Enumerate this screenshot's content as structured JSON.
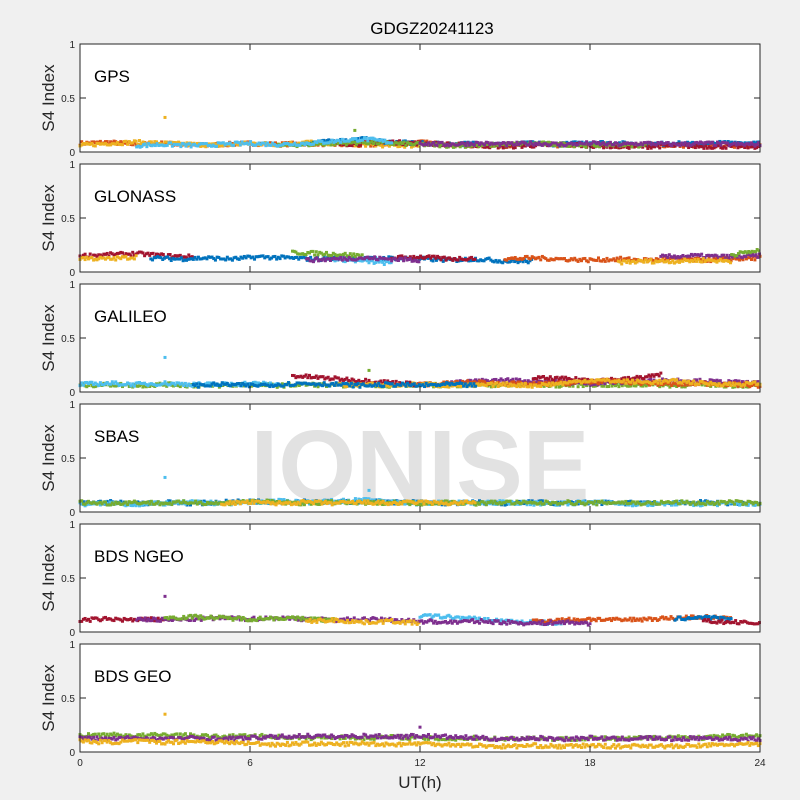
{
  "chart_data": {
    "type": "scatter",
    "title": "GDGZ20241123",
    "xlabel": "UT(h)",
    "ylabel": "S4 Index",
    "xlim": [
      0,
      24
    ],
    "ylim": [
      0,
      1
    ],
    "xticks": [
      "0",
      "6",
      "12",
      "18",
      "24"
    ],
    "yticks": [
      "0",
      "0.5",
      "1"
    ],
    "watermark": "IONISE",
    "panels": [
      {
        "label": "GPS",
        "series": [
          {
            "color": "#D95319",
            "t0": 0,
            "t1": 24,
            "y": [
              0.08,
              0.09,
              0.07,
              0.08,
              0.06,
              0.07,
              0.08,
              0.07,
              0.08,
              0.07,
              0.06,
              0.08,
              0.09,
              0.07,
              0.06,
              0.06,
              0.07,
              0.06,
              0.07,
              0.06,
              0.07,
              0.06,
              0.06,
              0.06,
              0.06
            ]
          },
          {
            "color": "#EDB120",
            "t0": 0,
            "t1": 12,
            "y": [
              0.06,
              0.08,
              0.09,
              0.08,
              0.07,
              0.06,
              0.08,
              0.07,
              0.09,
              0.08,
              0.07,
              0.06,
              0.06
            ]
          },
          {
            "color": "#0072BD",
            "t0": 8,
            "t1": 24,
            "y": [
              0.08,
              0.1,
              0.12,
              0.09,
              0.08,
              0.07,
              0.08,
              0.07,
              0.08,
              0.07,
              0.09,
              0.08,
              0.07,
              0.08,
              0.07,
              0.09,
              0.08
            ]
          },
          {
            "color": "#A2142F",
            "t0": 9,
            "t1": 24,
            "y": [
              0.07,
              0.08,
              0.09,
              0.08,
              0.07,
              0.06,
              0.05,
              0.06,
              0.07,
              0.06,
              0.05,
              0.05,
              0.06,
              0.05,
              0.05,
              0.05
            ]
          },
          {
            "color": "#77AC30",
            "t0": 7,
            "t1": 20,
            "y": [
              0.06,
              0.07,
              0.08,
              0.09,
              0.08,
              0.07,
              0.06,
              0.06,
              0.07,
              0.08,
              0.07,
              0.06,
              0.07,
              0.06
            ]
          },
          {
            "color": "#4DBEEE",
            "t0": 2,
            "t1": 11,
            "y": [
              0.06,
              0.07,
              0.06,
              0.07,
              0.08,
              0.07,
              0.08,
              0.1,
              0.12,
              0.09
            ]
          },
          {
            "color": "#7E2F8E",
            "t0": 12,
            "t1": 24,
            "y": [
              0.08,
              0.07,
              0.08,
              0.07,
              0.08,
              0.07,
              0.08,
              0.07,
              0.08,
              0.07,
              0.08,
              0.07,
              0.07
            ]
          }
        ],
        "outliers": [
          {
            "x": 3.0,
            "y": 0.32,
            "color": "#EDB120"
          },
          {
            "x": 9.7,
            "y": 0.2,
            "color": "#77AC30"
          }
        ]
      },
      {
        "label": "GLONASS",
        "series": [
          {
            "color": "#A2142F",
            "t0": 0,
            "t1": 4,
            "y": [
              0.15,
              0.16,
              0.17,
              0.15,
              0.14
            ]
          },
          {
            "color": "#EDB120",
            "t0": 0,
            "t1": 2,
            "y": [
              0.13,
              0.12,
              0.14
            ]
          },
          {
            "color": "#0072BD",
            "t0": 2.5,
            "t1": 16,
            "y": [
              0.13,
              0.12,
              0.13,
              0.12,
              0.14,
              0.13,
              0.12,
              0.13,
              0.12,
              0.13,
              0.12,
              0.11,
              0.12,
              0.1,
              0.1
            ]
          },
          {
            "color": "#77AC30",
            "t0": 7.5,
            "t1": 10,
            "y": [
              0.18,
              0.17,
              0.15
            ]
          },
          {
            "color": "#4DBEEE",
            "t0": 9,
            "t1": 11,
            "y": [
              0.12,
              0.1,
              0.08
            ]
          },
          {
            "color": "#A2142F",
            "t0": 11,
            "t1": 14,
            "y": [
              0.13,
              0.14,
              0.12,
              0.13
            ]
          },
          {
            "color": "#7E2F8E",
            "t0": 8,
            "t1": 12,
            "y": [
              0.11,
              0.12,
              0.13,
              0.12,
              0.11
            ]
          },
          {
            "color": "#D95319",
            "t0": 15,
            "t1": 24,
            "y": [
              0.12,
              0.13,
              0.12,
              0.11,
              0.12,
              0.11,
              0.12,
              0.11,
              0.12,
              0.13
            ]
          },
          {
            "color": "#7E2F8E",
            "t0": 20.5,
            "t1": 24,
            "y": [
              0.14,
              0.15,
              0.14,
              0.15
            ]
          },
          {
            "color": "#EDB120",
            "t0": 19,
            "t1": 23,
            "y": [
              0.09,
              0.1,
              0.1,
              0.11,
              0.1
            ]
          },
          {
            "color": "#77AC30",
            "t0": 23,
            "t1": 24,
            "y": [
              0.16,
              0.2
            ]
          }
        ],
        "outliers": []
      },
      {
        "label": "GALILEO",
        "series": [
          {
            "color": "#77AC30",
            "t0": 0,
            "t1": 24,
            "y": [
              0.06,
              0.07,
              0.06,
              0.07,
              0.06,
              0.06,
              0.07,
              0.06,
              0.07,
              0.06,
              0.07,
              0.06,
              0.07,
              0.06,
              0.07,
              0.06,
              0.07,
              0.06,
              0.07,
              0.06,
              0.07,
              0.06,
              0.07,
              0.06,
              0.06
            ]
          },
          {
            "color": "#4DBEEE",
            "t0": 0,
            "t1": 7,
            "y": [
              0.07,
              0.08,
              0.07,
              0.08,
              0.07,
              0.07,
              0.08,
              0.07
            ]
          },
          {
            "color": "#A2142F",
            "t0": 7.5,
            "t1": 12,
            "y": [
              0.15,
              0.13,
              0.11,
              0.09,
              0.07
            ]
          },
          {
            "color": "#7E2F8E",
            "t0": 13,
            "t1": 24,
            "y": [
              0.08,
              0.1,
              0.11,
              0.1,
              0.09,
              0.08,
              0.09,
              0.1,
              0.11,
              0.1,
              0.09,
              0.08
            ]
          },
          {
            "color": "#A2142F",
            "t0": 16,
            "t1": 20.5,
            "y": [
              0.13,
              0.12,
              0.11,
              0.12,
              0.16
            ]
          },
          {
            "color": "#D95319",
            "t0": 12,
            "t1": 24,
            "y": [
              0.07,
              0.08,
              0.09,
              0.08,
              0.07,
              0.08,
              0.09,
              0.1,
              0.08,
              0.07,
              0.08,
              0.07,
              0.06
            ]
          },
          {
            "color": "#EDB120",
            "t0": 9,
            "t1": 24,
            "y": [
              0.06,
              0.07,
              0.06,
              0.07,
              0.06,
              0.06,
              0.07,
              0.06,
              0.08,
              0.11,
              0.1,
              0.09,
              0.1,
              0.08,
              0.07,
              0.08
            ]
          },
          {
            "color": "#0072BD",
            "t0": 4,
            "t1": 14,
            "y": [
              0.06,
              0.07,
              0.06,
              0.07,
              0.08,
              0.07,
              0.06,
              0.07,
              0.06,
              0.07,
              0.06
            ]
          }
        ],
        "outliers": [
          {
            "x": 3.0,
            "y": 0.32,
            "color": "#4DBEEE"
          },
          {
            "x": 10.2,
            "y": 0.2,
            "color": "#77AC30"
          }
        ]
      },
      {
        "label": "SBAS",
        "series": [
          {
            "color": "#0072BD",
            "t0": 0,
            "t1": 24,
            "y": [
              0.08,
              0.09,
              0.08,
              0.09,
              0.08,
              0.09,
              0.1,
              0.09,
              0.1,
              0.09,
              0.1,
              0.09,
              0.09,
              0.08,
              0.09,
              0.08,
              0.09,
              0.08,
              0.09,
              0.08,
              0.09,
              0.08,
              0.09,
              0.08,
              0.08
            ]
          },
          {
            "color": "#4DBEEE",
            "t0": 0,
            "t1": 24,
            "y": [
              0.07,
              0.08,
              0.07,
              0.08,
              0.09,
              0.08,
              0.09,
              0.1,
              0.09,
              0.1,
              0.11,
              0.09,
              0.08,
              0.09,
              0.08,
              0.09,
              0.08,
              0.08,
              0.09,
              0.08,
              0.07,
              0.08,
              0.07,
              0.08,
              0.07
            ]
          },
          {
            "color": "#77AC30",
            "t0": 0,
            "t1": 24,
            "y": [
              0.09,
              0.08,
              0.09,
              0.08,
              0.09,
              0.08,
              0.1,
              0.09,
              0.08,
              0.09,
              0.08,
              0.09,
              0.08,
              0.09,
              0.08,
              0.09,
              0.08,
              0.09,
              0.08,
              0.09,
              0.08,
              0.09,
              0.08,
              0.09,
              0.08
            ]
          },
          {
            "color": "#EDB120",
            "t0": 5,
            "t1": 14,
            "y": [
              0.08,
              0.09,
              0.08,
              0.09,
              0.08,
              0.09,
              0.08,
              0.09,
              0.08,
              0.09
            ]
          }
        ],
        "outliers": [
          {
            "x": 3.0,
            "y": 0.32,
            "color": "#4DBEEE"
          },
          {
            "x": 10.2,
            "y": 0.2,
            "color": "#4DBEEE"
          }
        ]
      },
      {
        "label": "BDS NGEO",
        "series": [
          {
            "color": "#A2142F",
            "t0": 0,
            "t1": 3,
            "y": [
              0.11,
              0.12,
              0.11,
              0.12
            ]
          },
          {
            "color": "#7E2F8E",
            "t0": 2,
            "t1": 12,
            "y": [
              0.12,
              0.11,
              0.12,
              0.13,
              0.12,
              0.13,
              0.12,
              0.11,
              0.12,
              0.11,
              0.1
            ]
          },
          {
            "color": "#77AC30",
            "t0": 3,
            "t1": 9,
            "y": [
              0.13,
              0.14,
              0.13,
              0.12,
              0.13,
              0.12,
              0.11
            ]
          },
          {
            "color": "#EDB120",
            "t0": 8,
            "t1": 12,
            "y": [
              0.1,
              0.11,
              0.09,
              0.1,
              0.08
            ]
          },
          {
            "color": "#4DBEEE",
            "t0": 12,
            "t1": 17,
            "y": [
              0.15,
              0.14,
              0.12,
              0.1,
              0.09,
              0.08
            ]
          },
          {
            "color": "#D95319",
            "t0": 16,
            "t1": 23,
            "y": [
              0.1,
              0.11,
              0.12,
              0.11,
              0.12,
              0.13,
              0.14,
              0.12
            ]
          },
          {
            "color": "#0072BD",
            "t0": 21,
            "t1": 23,
            "y": [
              0.12,
              0.14,
              0.11
            ]
          },
          {
            "color": "#A2142F",
            "t0": 22,
            "t1": 24,
            "y": [
              0.1,
              0.09,
              0.08
            ]
          },
          {
            "color": "#7E2F8E",
            "t0": 12,
            "t1": 18,
            "y": [
              0.1,
              0.09,
              0.1,
              0.09,
              0.08,
              0.09,
              0.08
            ]
          }
        ],
        "outliers": [
          {
            "x": 3.0,
            "y": 0.33,
            "color": "#7E2F8E"
          }
        ]
      },
      {
        "label": "BDS GEO",
        "series": [
          {
            "color": "#77AC30",
            "t0": 0,
            "t1": 24,
            "y": [
              0.15,
              0.16,
              0.15,
              0.16,
              0.15,
              0.14,
              0.15,
              0.14,
              0.13,
              0.14,
              0.13,
              0.14,
              0.13,
              0.12,
              0.13,
              0.12,
              0.13,
              0.12,
              0.13,
              0.12,
              0.13,
              0.14,
              0.13,
              0.15,
              0.15
            ]
          },
          {
            "color": "#7E2F8E",
            "t0": 0,
            "t1": 24,
            "y": [
              0.13,
              0.12,
              0.13,
              0.12,
              0.13,
              0.12,
              0.13,
              0.14,
              0.15,
              0.14,
              0.15,
              0.14,
              0.15,
              0.14,
              0.13,
              0.12,
              0.13,
              0.12,
              0.13,
              0.12,
              0.13,
              0.12,
              0.13,
              0.12,
              0.12
            ]
          },
          {
            "color": "#EDB120",
            "t0": 0,
            "t1": 24,
            "y": [
              0.1,
              0.09,
              0.1,
              0.09,
              0.1,
              0.09,
              0.08,
              0.07,
              0.08,
              0.07,
              0.08,
              0.07,
              0.08,
              0.07,
              0.06,
              0.05,
              0.06,
              0.05,
              0.06,
              0.05,
              0.06,
              0.05,
              0.06,
              0.07,
              0.07
            ]
          }
        ],
        "outliers": [
          {
            "x": 3.0,
            "y": 0.35,
            "color": "#EDB120"
          },
          {
            "x": 12.0,
            "y": 0.23,
            "color": "#7E2F8E"
          }
        ]
      }
    ]
  }
}
